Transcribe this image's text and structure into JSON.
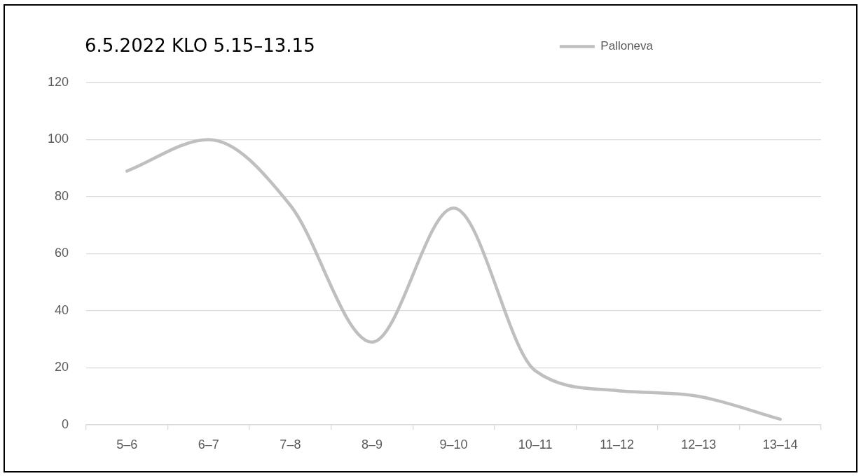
{
  "chart_data": {
    "type": "line",
    "title": "6.5.2022 KLO 5.15–13.15",
    "categories": [
      "5–6",
      "6–7",
      "7–8",
      "8–9",
      "9–10",
      "10–11",
      "11–12",
      "12–13",
      "13–14"
    ],
    "series": [
      {
        "name": "Palloneva",
        "color": "#bfbfbf",
        "values": [
          89,
          100,
          77,
          29,
          76,
          19,
          12,
          10,
          2
        ]
      }
    ],
    "ylim": [
      0,
      120
    ],
    "yticks": [
      0,
      20,
      40,
      60,
      80,
      100,
      120
    ],
    "grid": "y",
    "legend": "top right",
    "marker": "none"
  }
}
